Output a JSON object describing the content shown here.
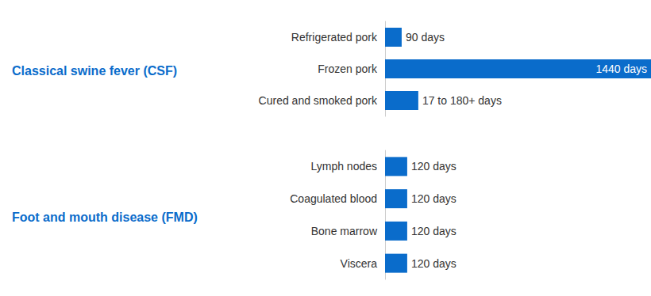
{
  "chart_data": [
    {
      "type": "bar",
      "orientation": "horizontal",
      "title": "Classical swine fever (CSF)",
      "categories": [
        "Refrigerated pork",
        "Frozen pork",
        "Cured and smoked pork"
      ],
      "values": [
        90,
        1440,
        180
      ],
      "value_labels": [
        "90 days",
        "1440 days",
        "17 to 180+ days"
      ],
      "color": "#0a6ccb",
      "xlim": [
        0,
        1440
      ],
      "data_labels": true,
      "tick_labels": "y",
      "grid": false
    },
    {
      "type": "bar",
      "orientation": "horizontal",
      "title": "Foot and mouth disease (FMD)",
      "categories": [
        "Lymph nodes",
        "Coagulated blood",
        "Bone marrow",
        "Viscera"
      ],
      "values": [
        120,
        120,
        120,
        120
      ],
      "value_labels": [
        "120 days",
        "120 days",
        "120 days",
        "120 days"
      ],
      "color": "#0a6ccb",
      "xlim": [
        0,
        1440
      ],
      "data_labels": true,
      "tick_labels": "y",
      "grid": false
    }
  ]
}
